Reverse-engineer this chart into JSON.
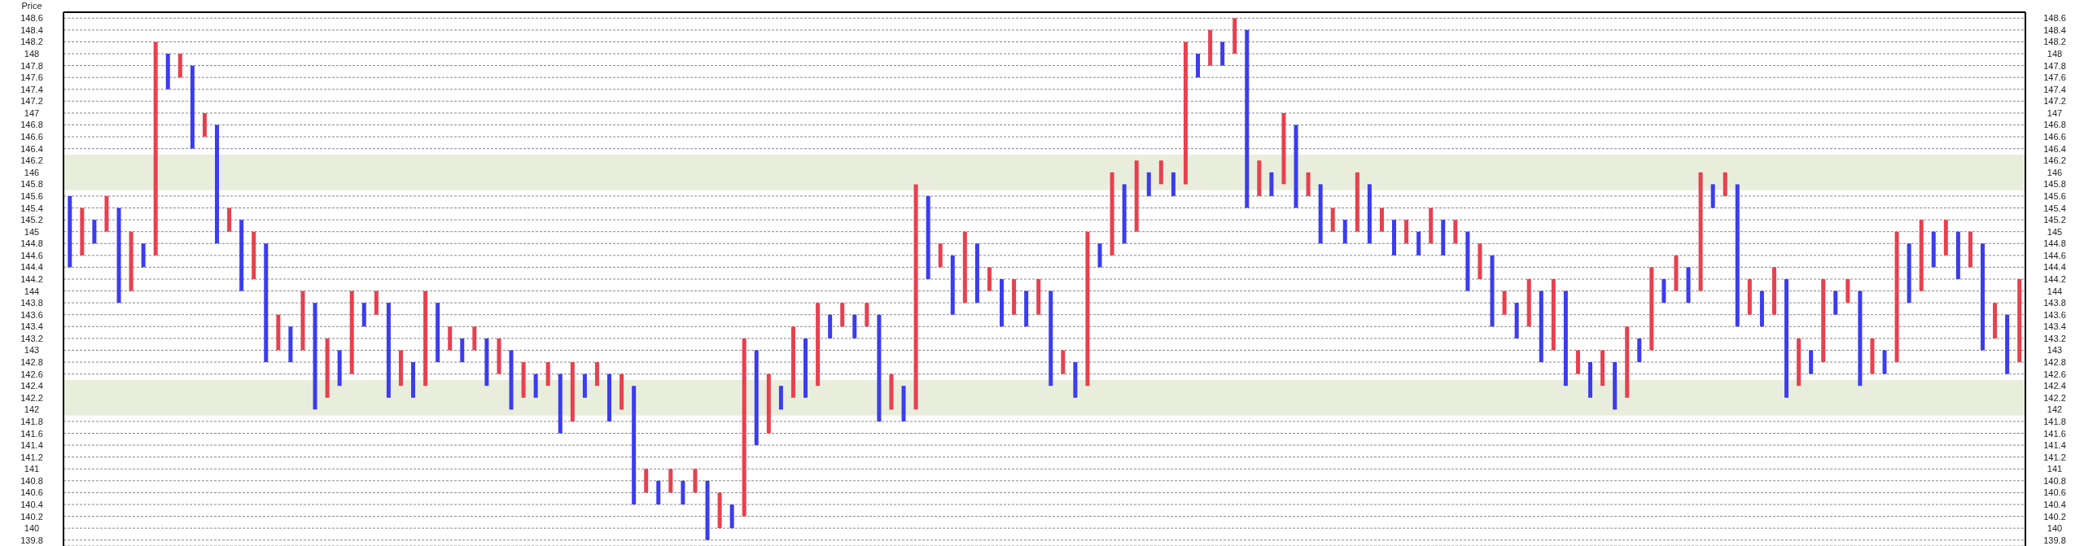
{
  "chart_data": {
    "type": "bar",
    "ylabel": "Price",
    "grid": "y",
    "tick_labels": "y",
    "ylim": [
      139.7,
      148.7
    ],
    "y2lim": [
      139.7,
      148.7
    ],
    "yticks": [
      139.8,
      140,
      140.2,
      140.4,
      140.6,
      140.8,
      141,
      141.2,
      141.4,
      141.6,
      141.8,
      142,
      142.2,
      142.4,
      142.6,
      142.8,
      143,
      143.2,
      143.4,
      143.6,
      143.8,
      144,
      144.2,
      144.4,
      144.6,
      144.8,
      145,
      145.2,
      145.4,
      145.6,
      145.8,
      146,
      146.2,
      146.4,
      146.6,
      146.8,
      147,
      147.2,
      147.4,
      147.6,
      147.8,
      148,
      148.2,
      148.4,
      148.6
    ],
    "y2ticks": [
      139.8,
      140,
      140.2,
      140.4,
      140.6,
      140.8,
      141,
      141.2,
      141.4,
      141.6,
      141.8,
      142,
      142.2,
      142.4,
      142.6,
      142.8,
      143,
      143.2,
      143.4,
      143.6,
      143.8,
      144,
      144.2,
      144.4,
      144.6,
      144.8,
      145,
      145.2,
      145.4,
      145.6,
      145.8,
      146,
      146.2,
      146.4,
      146.6,
      146.8,
      147,
      147.2,
      147.4,
      147.6,
      147.8,
      148,
      148.2,
      148.4,
      148.6
    ],
    "bands": [
      {
        "axis": "y",
        "from": 145.7,
        "to": 146.3,
        "color": "#e8eedb"
      },
      {
        "axis": "y",
        "from": 141.9,
        "to": 142.5,
        "color": "#e8eedb"
      }
    ],
    "categories": [
      null,
      null,
      null,
      null,
      null,
      null,
      null,
      null,
      null,
      null,
      null,
      null,
      null,
      null,
      null,
      null,
      null,
      null,
      null,
      null,
      null,
      null,
      null,
      null,
      null,
      null,
      null,
      null,
      null,
      null,
      null,
      null,
      null,
      null,
      null,
      null,
      null,
      null,
      null,
      null,
      null,
      null,
      null,
      null,
      null,
      null,
      null,
      null,
      null,
      null,
      null,
      null,
      null,
      null,
      null,
      null,
      null,
      null,
      null,
      null,
      null,
      null,
      null,
      null,
      null,
      null,
      null,
      null,
      null,
      null,
      null,
      null,
      null,
      null,
      null,
      null,
      null,
      null,
      null,
      null,
      null,
      null,
      null,
      null,
      null,
      null,
      null,
      null,
      null,
      null,
      null,
      null,
      null,
      null,
      null,
      null,
      null,
      null,
      null,
      null,
      null,
      null,
      null,
      null,
      null,
      null,
      null,
      null,
      null,
      null,
      null,
      null,
      null,
      null,
      null,
      null,
      null,
      null,
      null,
      null,
      null,
      null,
      null,
      null,
      null,
      null,
      null,
      null,
      null,
      null,
      null,
      null,
      null,
      null,
      null,
      null,
      null,
      null,
      null,
      null,
      null,
      null,
      null,
      null,
      null,
      null,
      null,
      null,
      null,
      null,
      null,
      null,
      null,
      null,
      null,
      null,
      null,
      null,
      null,
      null
    ],
    "base": [
      144.4,
      144.6,
      144.8,
      145,
      143.8,
      144,
      144.4,
      144.6,
      147.4,
      147.6,
      146.4,
      146.6,
      144.8,
      145,
      144,
      144.2,
      142.8,
      143,
      142.8,
      143,
      142,
      142.2,
      142.4,
      142.6,
      143.4,
      143.6,
      142.2,
      142.4,
      142.2,
      142.4,
      142.8,
      143,
      142.8,
      143,
      142.4,
      142.6,
      142,
      142.2,
      142.2,
      142.4,
      141.6,
      141.8,
      142.2,
      142.4,
      141.8,
      142,
      140.4,
      140.6,
      140.4,
      140.6,
      140.4,
      140.6,
      139.8,
      140,
      140,
      140.2,
      141.4,
      141.6,
      142,
      142.2,
      142.2,
      142.4,
      143.2,
      143.4,
      143.2,
      143.4,
      141.8,
      142,
      141.8,
      142,
      144.2,
      144.4,
      143.6,
      143.8,
      143.8,
      144,
      143.4,
      143.6,
      143.4,
      143.6,
      142.4,
      142.6,
      142.2,
      142.4,
      144.4,
      144.6,
      144.8,
      145,
      145.6,
      145.8,
      145.6,
      145.8,
      147.6,
      147.8,
      147.8,
      148,
      145.4,
      145.6,
      145.6,
      145.8,
      145.4,
      145.6,
      144.8,
      145,
      144.8,
      145,
      144.8,
      145,
      144.6,
      144.8,
      144.6,
      144.8,
      144.6,
      144.8,
      144,
      144.2,
      143.4,
      143.6,
      143.2,
      143.4,
      142.8,
      143,
      142.4,
      142.6,
      142.2,
      142.4,
      142,
      142.2,
      142.8,
      143,
      143.8,
      144,
      143.8,
      144,
      145.4,
      145.6,
      143.4,
      143.6,
      143.4,
      143.6,
      142.2,
      142.4,
      142.6,
      142.8,
      143.6,
      143.8,
      142.4,
      142.6,
      142.6,
      142.8,
      143.8,
      144,
      144.4,
      144.6,
      144.2,
      144.4,
      143,
      143.2,
      142.6,
      142.8
    ],
    "values": [
      1.2,
      0.8,
      0.4,
      0.6,
      1.6,
      1,
      0.4,
      3.6,
      0.6,
      0.4,
      1.4,
      0.4,
      2,
      0.4,
      1.2,
      0.8,
      2,
      0.6,
      0.6,
      1,
      1.8,
      1,
      0.6,
      1.4,
      0.4,
      0.4,
      1.6,
      0.6,
      0.6,
      1.6,
      1,
      0.4,
      0.4,
      0.4,
      0.8,
      0.6,
      1,
      0.6,
      0.4,
      0.4,
      1,
      1,
      0.4,
      0.4,
      0.8,
      0.6,
      2,
      0.4,
      0.4,
      0.4,
      0.4,
      0.4,
      1,
      0.6,
      0.4,
      3,
      1.6,
      1,
      0.4,
      1.2,
      1,
      1.4,
      0.4,
      0.4,
      0.4,
      0.4,
      1.8,
      0.6,
      0.6,
      3.8,
      1.4,
      0.4,
      1,
      1.2,
      1,
      0.4,
      0.8,
      0.6,
      0.6,
      0.6,
      1.6,
      0.4,
      0.6,
      2.6,
      0.4,
      1.4,
      1,
      1.2,
      0.4,
      0.4,
      0.4,
      2.4,
      0.4,
      0.6,
      0.4,
      0.6,
      3,
      0.6,
      0.4,
      1.2,
      1.4,
      0.4,
      1,
      0.4,
      0.4,
      1,
      1,
      0.4,
      0.6,
      0.4,
      0.4,
      0.6,
      0.6,
      0.4,
      1,
      0.6,
      1.2,
      0.4,
      0.6,
      0.8,
      1.2,
      1.2,
      1.6,
      0.4,
      0.6,
      0.6,
      0.8,
      1.2,
      0.4,
      1.4,
      0.4,
      0.6,
      0.6,
      2,
      0.4,
      0.4,
      2.4,
      0.6,
      0.6,
      0.8,
      2,
      0.8,
      0.4,
      1.4,
      0.4,
      0.4,
      1.6,
      0.6,
      0.4,
      2.2,
      1,
      1.2,
      0.6,
      0.6,
      0.8,
      0.6,
      1.8,
      0.6,
      1,
      1.4
    ],
    "colors": [
      "#3c3cf0",
      "#e8404f",
      "#3c3cf0",
      "#e8404f",
      "#3c3cf0",
      "#e8404f",
      "#3c3cf0",
      "#e8404f",
      "#3c3cf0",
      "#e8404f",
      "#3c3cf0",
      "#e8404f",
      "#3c3cf0",
      "#e8404f",
      "#3c3cf0",
      "#e8404f",
      "#3c3cf0",
      "#e8404f",
      "#3c3cf0",
      "#e8404f",
      "#3c3cf0",
      "#e8404f",
      "#3c3cf0",
      "#e8404f",
      "#3c3cf0",
      "#e8404f",
      "#3c3cf0",
      "#e8404f",
      "#3c3cf0",
      "#e8404f",
      "#3c3cf0",
      "#e8404f",
      "#3c3cf0",
      "#e8404f",
      "#3c3cf0",
      "#e8404f",
      "#3c3cf0",
      "#e8404f",
      "#3c3cf0",
      "#e8404f",
      "#3c3cf0",
      "#e8404f",
      "#3c3cf0",
      "#e8404f",
      "#3c3cf0",
      "#e8404f",
      "#3c3cf0",
      "#e8404f",
      "#3c3cf0",
      "#e8404f",
      "#3c3cf0",
      "#e8404f",
      "#3c3cf0",
      "#e8404f",
      "#3c3cf0",
      "#e8404f",
      "#3c3cf0",
      "#e8404f",
      "#3c3cf0",
      "#e8404f",
      "#3c3cf0",
      "#e8404f",
      "#3c3cf0",
      "#e8404f",
      "#3c3cf0",
      "#e8404f",
      "#3c3cf0",
      "#e8404f",
      "#3c3cf0",
      "#e8404f",
      "#3c3cf0",
      "#e8404f",
      "#3c3cf0",
      "#e8404f",
      "#3c3cf0",
      "#e8404f",
      "#3c3cf0",
      "#e8404f",
      "#3c3cf0",
      "#e8404f",
      "#3c3cf0",
      "#e8404f",
      "#3c3cf0",
      "#e8404f",
      "#3c3cf0",
      "#e8404f",
      "#3c3cf0",
      "#e8404f",
      "#3c3cf0",
      "#e8404f",
      "#3c3cf0",
      "#e8404f",
      "#3c3cf0",
      "#e8404f",
      "#3c3cf0",
      "#e8404f",
      "#3c3cf0",
      "#e8404f",
      "#3c3cf0",
      "#e8404f",
      "#3c3cf0",
      "#e8404f",
      "#3c3cf0",
      "#e8404f",
      "#3c3cf0",
      "#e8404f",
      "#3c3cf0",
      "#e8404f",
      "#3c3cf0",
      "#e8404f",
      "#3c3cf0",
      "#e8404f",
      "#3c3cf0",
      "#e8404f",
      "#3c3cf0",
      "#e8404f",
      "#3c3cf0",
      "#e8404f",
      "#3c3cf0",
      "#e8404f",
      "#3c3cf0",
      "#e8404f",
      "#3c3cf0",
      "#e8404f",
      "#3c3cf0",
      "#e8404f",
      "#3c3cf0",
      "#e8404f",
      "#3c3cf0",
      "#e8404f",
      "#3c3cf0",
      "#e8404f",
      "#3c3cf0",
      "#e8404f",
      "#3c3cf0",
      "#e8404f",
      "#3c3cf0",
      "#e8404f",
      "#3c3cf0",
      "#e8404f",
      "#3c3cf0",
      "#e8404f",
      "#3c3cf0",
      "#e8404f",
      "#3c3cf0",
      "#e8404f",
      "#3c3cf0",
      "#e8404f",
      "#3c3cf0",
      "#e8404f",
      "#3c3cf0",
      "#e8404f",
      "#3c3cf0",
      "#e8404f",
      "#3c3cf0",
      "#e8404f",
      "#3c3cf0",
      "#e8404f",
      "#3c3cf0",
      "#e8404f"
    ]
  }
}
